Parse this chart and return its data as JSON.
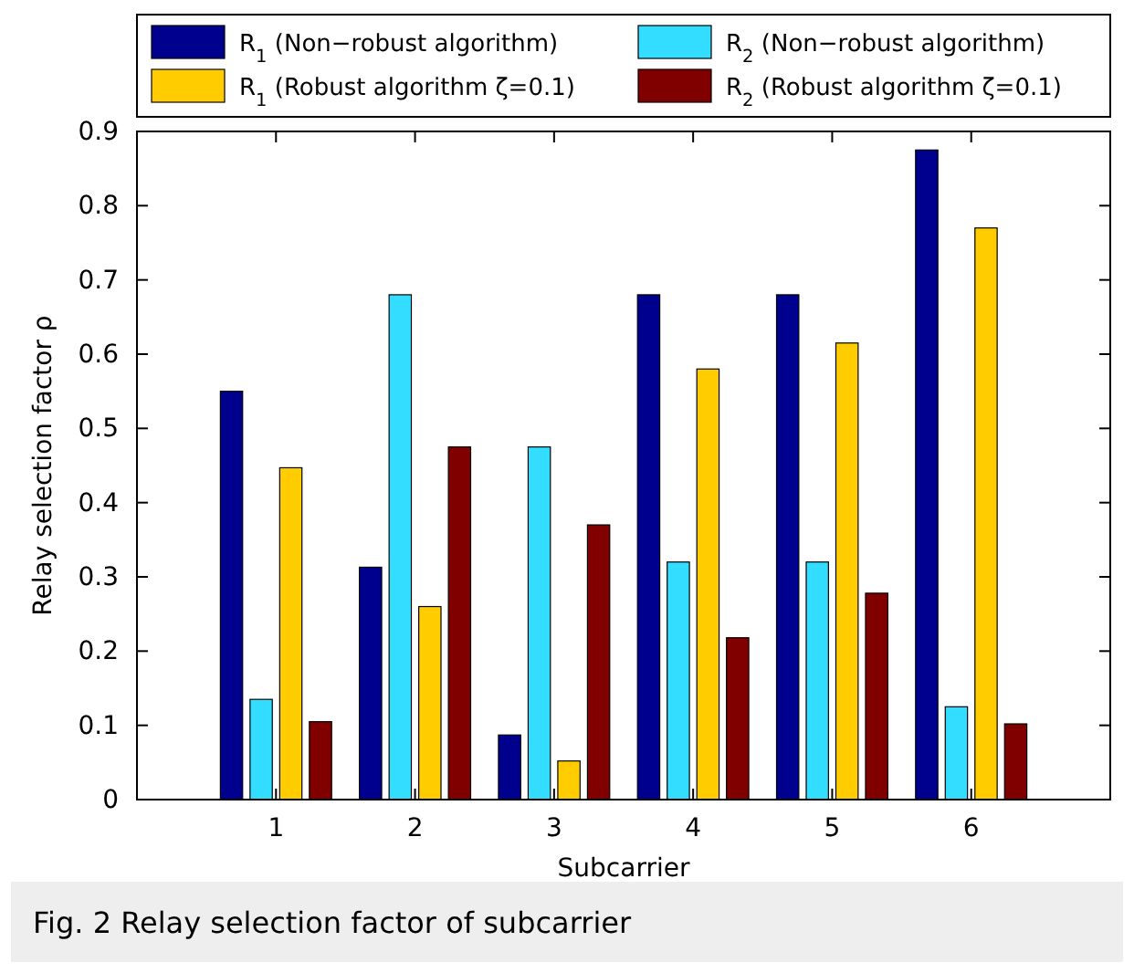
{
  "chart_data": {
    "type": "bar",
    "title": "Fig. 2 Relay selection factor of subcarrier",
    "xlabel": "Subcarrier",
    "ylabel": "Relay selection factor ρ",
    "categories": [
      "1",
      "2",
      "3",
      "4",
      "5",
      "6"
    ],
    "series": [
      {
        "name": "R$_{1}$ (Non−robust algorithm)",
        "color": "#00008f",
        "values": [
          0.55,
          0.313,
          0.087,
          0.68,
          0.68,
          0.875
        ]
      },
      {
        "name": "R$_{2}$ (Non−robust algorithm)",
        "color": "#33ddff",
        "values": [
          0.135,
          0.68,
          0.475,
          0.32,
          0.32,
          0.125
        ]
      },
      {
        "name": "R$_{1}$ (Robust algorithm ζ=0.1)",
        "color": "#ffcc00",
        "values": [
          0.447,
          0.26,
          0.052,
          0.58,
          0.615,
          0.77
        ]
      },
      {
        "name": "R$_{2}$ (Robust algorithm ζ=0.1)",
        "color": "#800000",
        "values": [
          0.105,
          0.475,
          0.37,
          0.218,
          0.278,
          0.102
        ]
      }
    ],
    "ylim": [
      0,
      0.9
    ],
    "yticks": [
      0,
      0.1,
      0.2,
      0.3,
      0.4,
      0.5,
      0.6,
      0.7,
      0.8,
      0.9
    ],
    "legend": "top"
  }
}
